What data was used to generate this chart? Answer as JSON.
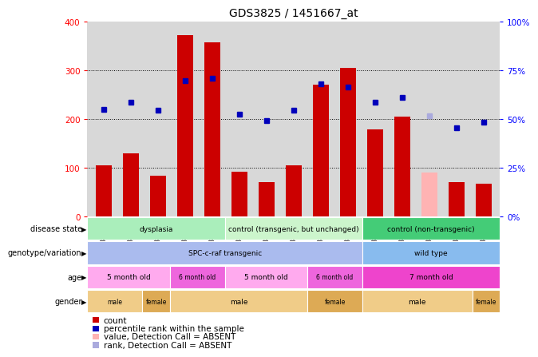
{
  "title": "GDS3825 / 1451667_at",
  "samples": [
    "GSM351067",
    "GSM351068",
    "GSM351066",
    "GSM351065",
    "GSM351069",
    "GSM351072",
    "GSM351094",
    "GSM351071",
    "GSM351064",
    "GSM351070",
    "GSM351095",
    "GSM351144",
    "GSM351146",
    "GSM351145",
    "GSM351147"
  ],
  "bar_values": [
    105,
    130,
    83,
    372,
    358,
    92,
    70,
    105,
    270,
    305,
    178,
    205,
    90,
    70,
    68
  ],
  "bar_absent": [
    false,
    false,
    false,
    false,
    false,
    false,
    false,
    false,
    false,
    false,
    false,
    false,
    true,
    false,
    false
  ],
  "dot_values": [
    220,
    235,
    218,
    278,
    283,
    210,
    197,
    218,
    272,
    265,
    235,
    245,
    207,
    182,
    193
  ],
  "dot_absent": [
    false,
    false,
    false,
    false,
    false,
    false,
    false,
    false,
    false,
    false,
    false,
    false,
    true,
    false,
    false
  ],
  "bar_color_normal": "#cc0000",
  "bar_color_absent": "#ffb3b3",
  "dot_color_normal": "#0000bb",
  "dot_color_absent": "#aaaadd",
  "ylim_left": [
    0,
    400
  ],
  "ylim_right": [
    0,
    100
  ],
  "yticks_left": [
    0,
    100,
    200,
    300,
    400
  ],
  "yticks_right": [
    0,
    25,
    50,
    75,
    100
  ],
  "ytick_labels_right": [
    "0%",
    "25%",
    "50%",
    "75%",
    "100%"
  ],
  "grid_values": [
    100,
    200,
    300
  ],
  "disease_state_groups": [
    {
      "label": "dysplasia",
      "start": 0,
      "end": 5,
      "color": "#aaeebb"
    },
    {
      "label": "control (transgenic, but unchanged)",
      "start": 5,
      "end": 10,
      "color": "#ccf5cc"
    },
    {
      "label": "control (non-transgenic)",
      "start": 10,
      "end": 15,
      "color": "#44cc77"
    }
  ],
  "genotype_groups": [
    {
      "label": "SPC-c-raf transgenic",
      "start": 0,
      "end": 10,
      "color": "#aabbee"
    },
    {
      "label": "wild type",
      "start": 10,
      "end": 15,
      "color": "#88bbee"
    }
  ],
  "age_groups": [
    {
      "label": "5 month old",
      "start": 0,
      "end": 3,
      "color": "#ffaaee"
    },
    {
      "label": "6 month old",
      "start": 3,
      "end": 5,
      "color": "#ee66dd"
    },
    {
      "label": "5 month old",
      "start": 5,
      "end": 8,
      "color": "#ffaaee"
    },
    {
      "label": "6 month old",
      "start": 8,
      "end": 10,
      "color": "#ee66dd"
    },
    {
      "label": "7 month old",
      "start": 10,
      "end": 15,
      "color": "#ee44cc"
    }
  ],
  "gender_groups": [
    {
      "label": "male",
      "start": 0,
      "end": 2,
      "color": "#f0cc88"
    },
    {
      "label": "female",
      "start": 2,
      "end": 3,
      "color": "#ddaa55"
    },
    {
      "label": "male",
      "start": 3,
      "end": 8,
      "color": "#f0cc88"
    },
    {
      "label": "female",
      "start": 8,
      "end": 10,
      "color": "#ddaa55"
    },
    {
      "label": "male",
      "start": 10,
      "end": 14,
      "color": "#f0cc88"
    },
    {
      "label": "female",
      "start": 14,
      "end": 15,
      "color": "#ddaa55"
    }
  ],
  "row_labels": [
    "disease state",
    "genotype/variation",
    "age",
    "gender"
  ],
  "legend_items": [
    {
      "label": "count",
      "color": "#cc0000"
    },
    {
      "label": "percentile rank within the sample",
      "color": "#0000bb"
    },
    {
      "label": "value, Detection Call = ABSENT",
      "color": "#ffb3b3"
    },
    {
      "label": "rank, Detection Call = ABSENT",
      "color": "#aaaadd"
    }
  ],
  "chart_bg": "#d8d8d8",
  "tick_bg": "#d8d8d8"
}
